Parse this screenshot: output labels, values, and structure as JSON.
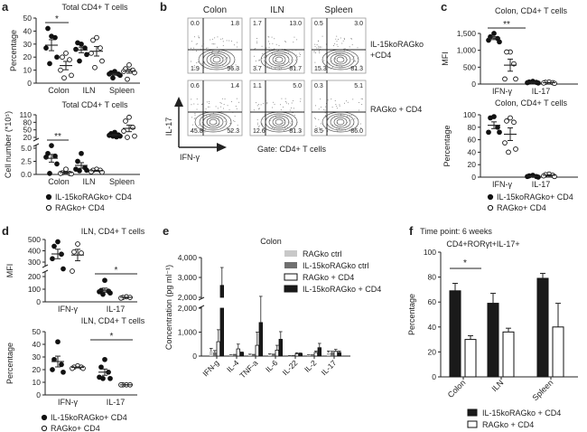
{
  "panel_letters": [
    "a",
    "b",
    "c",
    "d",
    "e",
    "f"
  ],
  "chart_data": [
    {
      "panel": "a",
      "type": "scatter",
      "title": "Total CD4+ T cells",
      "ylabel": "Percentage",
      "categories": [
        "Colon",
        "ILN",
        "Spleen"
      ],
      "yticks": [
        "0",
        "10",
        "20",
        "30",
        "40",
        "50"
      ],
      "ylim": [
        0,
        50
      ],
      "series": [
        {
          "name": "IL-15koRAGko+ CD4",
          "values": [
            [
              36,
              42,
              35,
              27,
              20,
              15
            ],
            [
              30,
              31,
              27,
              26,
              22,
              17
            ],
            [
              9,
              8,
              7,
              7,
              6,
              4
            ]
          ]
        },
        {
          "name": "RAGko+ CD4",
          "values": [
            [
              23,
              20,
              18,
              10,
              6,
              4
            ],
            [
              35,
              33,
              27,
              23,
              17,
              12
            ],
            [
              14,
              11,
              10,
              9,
              8,
              3
            ]
          ]
        }
      ],
      "significance": [
        {
          "category": "Colon",
          "label": "*"
        }
      ]
    },
    {
      "panel": "a",
      "type": "scatter",
      "title": "Total CD4+ T cells",
      "ylabel": "Cell number (*10⁵)",
      "categories": [
        "Colon",
        "ILN",
        "Spleen"
      ],
      "yticks": [
        "0.0",
        "2.5",
        "5.0",
        "20",
        "50",
        "80",
        "110"
      ],
      "ylim_lower": [
        0,
        5
      ],
      "ylim_upper": [
        20,
        110
      ],
      "series": [
        {
          "name": "IL-15koRAGko+ CD4",
          "values": [
            [
              5.5,
              4,
              3.5,
              3.3,
              2,
              0.2
            ],
            [
              4,
              2.5,
              1.3,
              1,
              0.8,
              0.7
            ],
            [
              40,
              35,
              30,
              28,
              25,
              25,
              22
            ]
          ]
        },
        {
          "name": "RAGko+ CD4",
          "values": [
            [
              1,
              0.3,
              0.2,
              0.2,
              0.1
            ],
            [
              1,
              0.8,
              0.8,
              0.5,
              0.4
            ],
            [
              100,
              85,
              60,
              45,
              25,
              20
            ]
          ]
        }
      ],
      "significance": [
        {
          "category": "Colon",
          "label": "**"
        }
      ]
    },
    {
      "panel": "b",
      "type": "contour",
      "columns": [
        "Colon",
        "ILN",
        "Spleen"
      ],
      "rows": [
        [
          "IL-15koRAGko",
          "+CD4"
        ],
        [
          "RAGko + CD4"
        ]
      ],
      "xlabel": "IFN-γ",
      "ylabel": "IL-17",
      "gate": "Gate: CD4+ T cells",
      "quadrants": [
        [
          [
            "0.0",
            "1.8",
            "1.9",
            "96.3"
          ],
          [
            "1.7",
            "13.0",
            "3.7",
            "81.7"
          ],
          [
            "0.5",
            "3.0",
            "15.3",
            "81.3"
          ]
        ],
        [
          [
            "0.6",
            "1.4",
            "45.8",
            "52.3"
          ],
          [
            "1.1",
            "5.0",
            "12.6",
            "81.3"
          ],
          [
            "0.3",
            "5.1",
            "8.5",
            "86.0"
          ]
        ]
      ]
    },
    {
      "panel": "c",
      "type": "scatter",
      "title": "Colon, CD4+ T cells",
      "ylabel": "MFI",
      "categories": [
        "IFN-γ",
        "IL-17"
      ],
      "yticks": [
        "0",
        "500",
        "1,000",
        "1,500"
      ],
      "ylim": [
        0,
        1500
      ],
      "series": [
        {
          "name": "IL-15koRAGko+ CD4",
          "values": [
            [
              1500,
              1400,
              1350,
              1300,
              1250
            ],
            [
              80,
              60,
              50,
              40,
              30
            ]
          ]
        },
        {
          "name": "RAGko+ CD4",
          "values": [
            [
              950,
              950,
              600,
              150,
              150
            ],
            [
              60,
              50,
              40,
              30,
              20
            ]
          ]
        }
      ],
      "significance": [
        {
          "category": "IFN-γ",
          "label": "**"
        }
      ]
    },
    {
      "panel": "c",
      "type": "scatter",
      "title": "Colon, CD4+ T cells",
      "ylabel": "Percentage",
      "categories": [
        "IFN-γ",
        "IL-17"
      ],
      "yticks": [
        "0",
        "20",
        "40",
        "60",
        "80",
        "100"
      ],
      "ylim": [
        0,
        100
      ],
      "series": [
        {
          "name": "IL-15koRAGko+ CD4",
          "values": [
            [
              97,
              95,
              80,
              72,
              72
            ],
            [
              3,
              2,
              1,
              1,
              0
            ]
          ]
        },
        {
          "name": "RAGko+ CD4",
          "values": [
            [
              95,
              90,
              88,
              55,
              45,
              40
            ],
            [
              5,
              4,
              3,
              2,
              1
            ]
          ]
        }
      ],
      "significance": []
    },
    {
      "panel": "d",
      "type": "scatter",
      "title": "ILN, CD4+ T cells",
      "ylabel": "MFI",
      "categories": [
        "IFN-γ",
        "IL-17"
      ],
      "yticks": [
        "0",
        "100",
        "200",
        "300",
        "400",
        "500"
      ],
      "ylim_lower": [
        0,
        200
      ],
      "ylim_upper": [
        300,
        500
      ],
      "series": [
        {
          "name": "IL-15koRAGko+ CD4",
          "values": [
            [
              480,
              440,
              370,
              330,
              240
            ],
            [
              170,
              90,
              85,
              80,
              70,
              60
            ]
          ]
        },
        {
          "name": "RAGko+ CD4",
          "values": [
            [
              460,
              390,
              380,
              220
            ],
            [
              40,
              35,
              35,
              30
            ]
          ]
        }
      ],
      "significance": [
        {
          "category": "IL-17",
          "label": "*"
        }
      ]
    },
    {
      "panel": "d",
      "type": "scatter",
      "title": "ILN, CD4+ T cells",
      "ylabel": "Percentage",
      "categories": [
        "IFN-γ",
        "IL-17"
      ],
      "yticks": [
        "0",
        "10",
        "20",
        "30",
        "40",
        "50"
      ],
      "ylim": [
        0,
        50
      ],
      "series": [
        {
          "name": "IL-15koRAGko+ CD4",
          "values": [
            [
              42,
              28,
              24,
              20,
              18
            ],
            [
              28,
              22,
              18,
              14,
              13,
              13
            ]
          ]
        },
        {
          "name": "RAGko+ CD4",
          "values": [
            [
              23,
              22,
              22,
              21,
              21
            ],
            [
              8,
              8,
              8,
              8
            ]
          ]
        }
      ],
      "significance": [
        {
          "category": "IL-17",
          "label": "*"
        }
      ]
    },
    {
      "panel": "e",
      "type": "bar",
      "title": "Colon",
      "ylabel": "Concentration (pg ml⁻¹)",
      "categories": [
        "IFN-g",
        "IL-4",
        "TNF-a",
        "IL-6",
        "IL-22",
        "IL-2",
        "IL-17"
      ],
      "yticks": [
        "0",
        "1,000",
        "2,000",
        "2,000",
        "3,000",
        "4,000"
      ],
      "ylim_lower": [
        0,
        2000
      ],
      "ylim_upper": [
        2000,
        4000
      ],
      "series": [
        {
          "name": "RAGko ctrl",
          "color": "#c8c8c8",
          "values": [
            200,
            30,
            50,
            60,
            10,
            30,
            150
          ],
          "errors": [
            120,
            20,
            30,
            30,
            10,
            20,
            60
          ]
        },
        {
          "name": "IL-15koRAGko ctrl",
          "color": "#707070",
          "values": [
            150,
            50,
            50,
            60,
            10,
            30,
            150
          ],
          "errors": [
            80,
            20,
            20,
            20,
            10,
            20,
            50
          ]
        },
        {
          "name": "RAGko + CD4",
          "color": "#ffffff",
          "values": [
            600,
            300,
            450,
            250,
            100,
            150,
            200
          ],
          "errors": [
            500,
            200,
            550,
            200,
            40,
            60,
            80
          ]
        },
        {
          "name": "IL-15koRAGko + CD4",
          "color": "#1a1a1a",
          "values": [
            2600,
            150,
            1400,
            700,
            100,
            350,
            150
          ],
          "errors": [
            900,
            20,
            650,
            320,
            30,
            180,
            60
          ]
        }
      ]
    },
    {
      "panel": "f",
      "type": "bar",
      "title": "Time point: 6 weeks",
      "subtitle": "CD4+RORγt+IL-17+",
      "ylabel": "Percentage",
      "categories": [
        "Colon",
        "ILN",
        "Spleen"
      ],
      "yticks": [
        "0",
        "20",
        "40",
        "60",
        "80",
        "100"
      ],
      "ylim": [
        0,
        100
      ],
      "series": [
        {
          "name": "IL-15koRAGko + CD4",
          "color": "#1a1a1a",
          "values": [
            69,
            59,
            79
          ],
          "errors": [
            6,
            8,
            4
          ]
        },
        {
          "name": "RAGko + CD4",
          "color": "#ffffff",
          "values": [
            30,
            36,
            40
          ],
          "errors": [
            3,
            3,
            19
          ]
        }
      ],
      "significance": [
        {
          "category": "Colon",
          "label": "*"
        }
      ]
    }
  ]
}
